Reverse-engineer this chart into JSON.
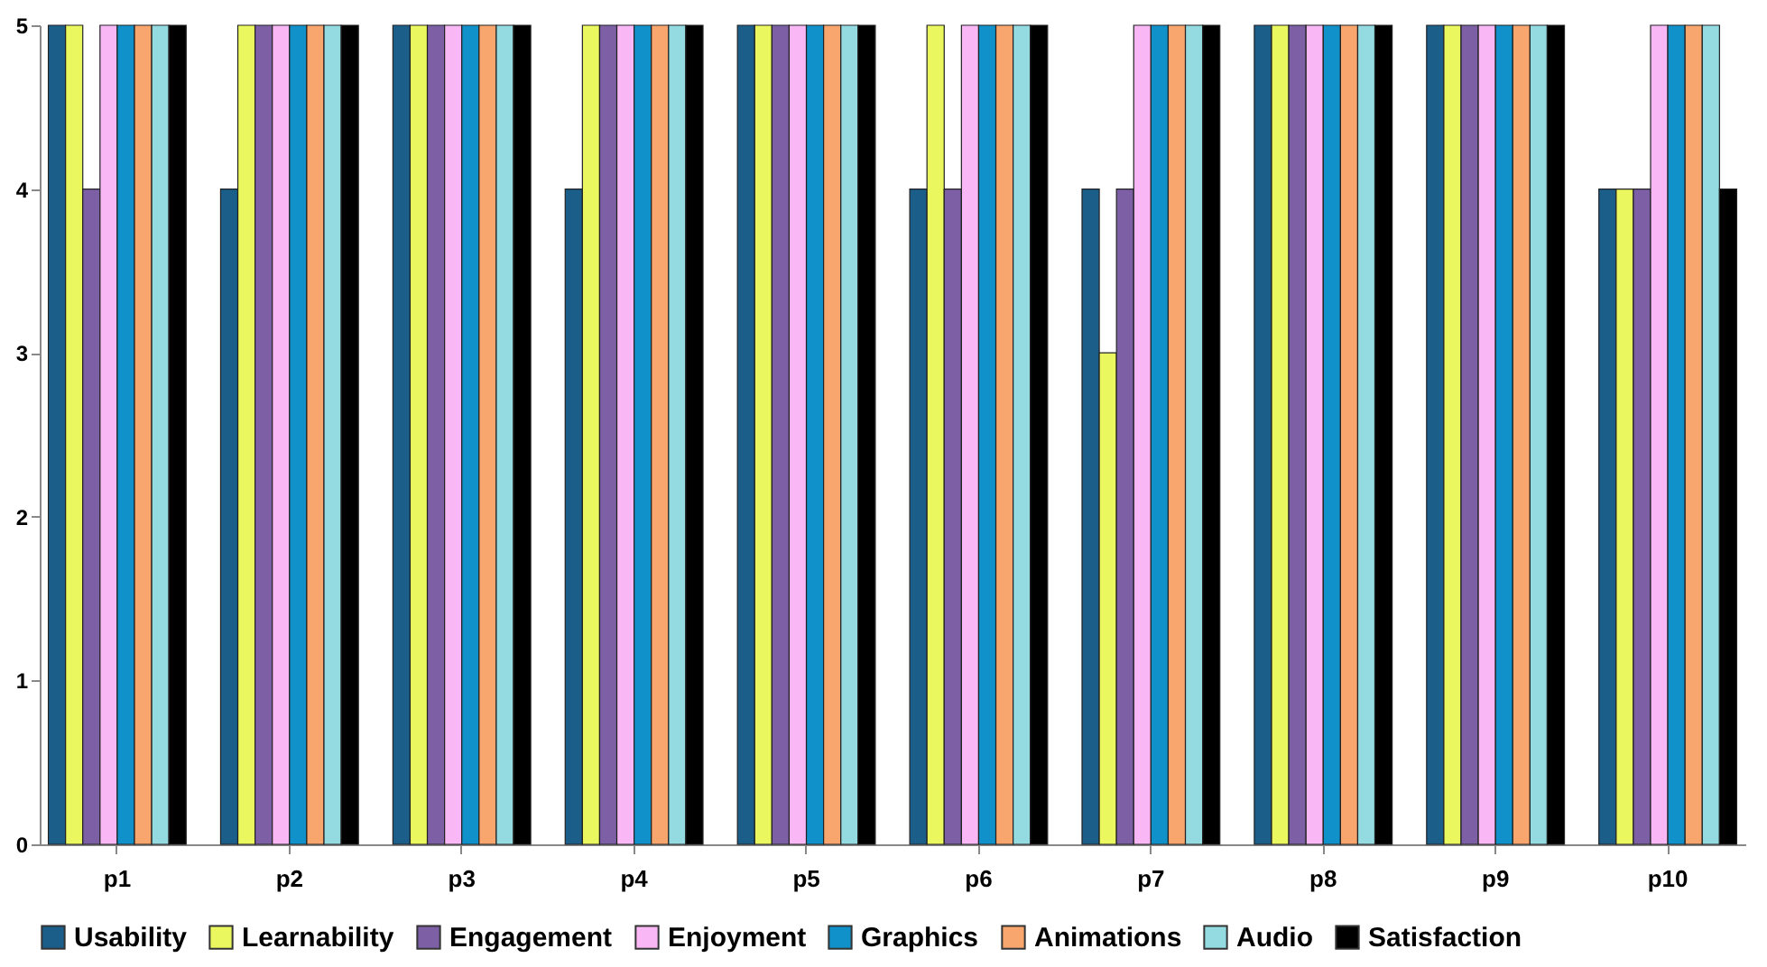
{
  "chart_data": {
    "type": "bar",
    "categories": [
      "p1",
      "p2",
      "p3",
      "p4",
      "p5",
      "p6",
      "p7",
      "p8",
      "p9",
      "p10"
    ],
    "series": [
      {
        "name": "Usability",
        "color": "#1b5e8a",
        "values": [
          5,
          4,
          5,
          4,
          5,
          4,
          4,
          5,
          5,
          4
        ]
      },
      {
        "name": "Learnability",
        "color": "#eaf75e",
        "values": [
          5,
          5,
          5,
          5,
          5,
          5,
          3,
          5,
          5,
          4
        ]
      },
      {
        "name": "Engagement",
        "color": "#7d5fa6",
        "values": [
          4,
          5,
          5,
          5,
          5,
          4,
          4,
          5,
          5,
          4
        ]
      },
      {
        "name": "Enjoyment",
        "color": "#f9b8f5",
        "values": [
          5,
          5,
          5,
          5,
          5,
          5,
          5,
          5,
          5,
          5
        ]
      },
      {
        "name": "Graphics",
        "color": "#1191c9",
        "values": [
          5,
          5,
          5,
          5,
          5,
          5,
          5,
          5,
          5,
          5
        ]
      },
      {
        "name": "Animations",
        "color": "#f9a66e",
        "values": [
          5,
          5,
          5,
          5,
          5,
          5,
          5,
          5,
          5,
          5
        ]
      },
      {
        "name": "Audio",
        "color": "#93dbe1",
        "values": [
          5,
          5,
          5,
          5,
          5,
          5,
          5,
          5,
          5,
          5
        ]
      },
      {
        "name": "Satisfaction",
        "color": "#000000",
        "values": [
          5,
          5,
          5,
          5,
          5,
          5,
          5,
          5,
          5,
          4
        ]
      }
    ],
    "ylim": [
      0,
      5
    ],
    "yticks": [
      0,
      1,
      2,
      3,
      4,
      5
    ],
    "grid": false,
    "legend": "bottom"
  }
}
